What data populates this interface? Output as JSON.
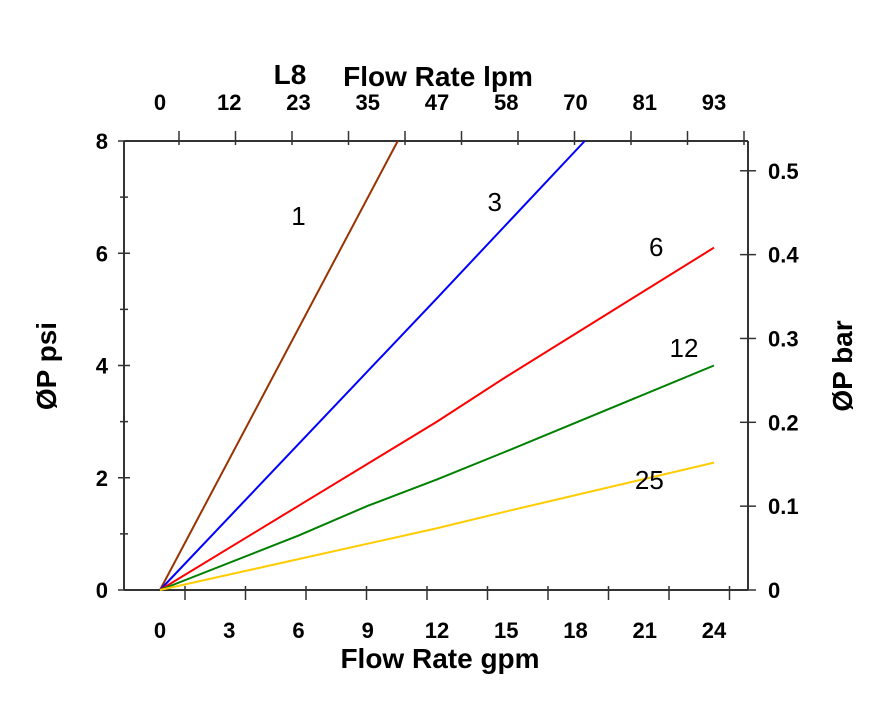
{
  "chart_data": {
    "type": "line",
    "title": "L8",
    "xlabel": "Flow Rate gpm",
    "x2label": "Flow Rate lpm",
    "ylabel": "ØP psi",
    "y2label": "ØP bar",
    "xlim": [
      0,
      24
    ],
    "ylim": [
      0,
      8
    ],
    "xticks": [
      "0",
      "3",
      "6",
      "9",
      "12",
      "15",
      "18",
      "21",
      "24"
    ],
    "x2ticks": [
      "0",
      "12",
      "23",
      "35",
      "47",
      "58",
      "70",
      "81",
      "93"
    ],
    "yticks": [
      "0",
      "2",
      "4",
      "6",
      "8"
    ],
    "y2ticks": [
      "0",
      "0.1",
      "0.2",
      "0.3",
      "0.4",
      "0.5"
    ],
    "grid": false,
    "series": [
      {
        "name": "1",
        "color": "#993300",
        "x": [
          0,
          10.3
        ],
        "y": [
          0,
          8
        ]
      },
      {
        "name": "3",
        "color": "#0000ff",
        "x": [
          0,
          3,
          6,
          12,
          18.4
        ],
        "y": [
          0,
          1.3,
          2.6,
          5.2,
          8
        ]
      },
      {
        "name": "6",
        "color": "#ff0000",
        "x": [
          0,
          6,
          12,
          15,
          24
        ],
        "y": [
          0,
          1.5,
          3.0,
          3.8,
          6.1
        ]
      },
      {
        "name": "12",
        "color": "#008000",
        "x": [
          0,
          6,
          9,
          12,
          15,
          24
        ],
        "y": [
          0,
          0.97,
          1.5,
          1.97,
          2.47,
          4.0
        ]
      },
      {
        "name": "25",
        "color": "#ffcc00",
        "x": [
          0,
          6,
          12,
          15,
          24
        ],
        "y": [
          0,
          0.55,
          1.1,
          1.4,
          2.27
        ]
      }
    ],
    "series_label_positions": [
      {
        "name": "1",
        "x": 6.0,
        "y": 6.5
      },
      {
        "name": "3",
        "x": 14.5,
        "y": 6.75
      },
      {
        "name": "6",
        "x": 21.5,
        "y": 5.95
      },
      {
        "name": "12",
        "x": 22.7,
        "y": 4.15
      },
      {
        "name": "25",
        "x": 21.2,
        "y": 1.8
      }
    ]
  }
}
